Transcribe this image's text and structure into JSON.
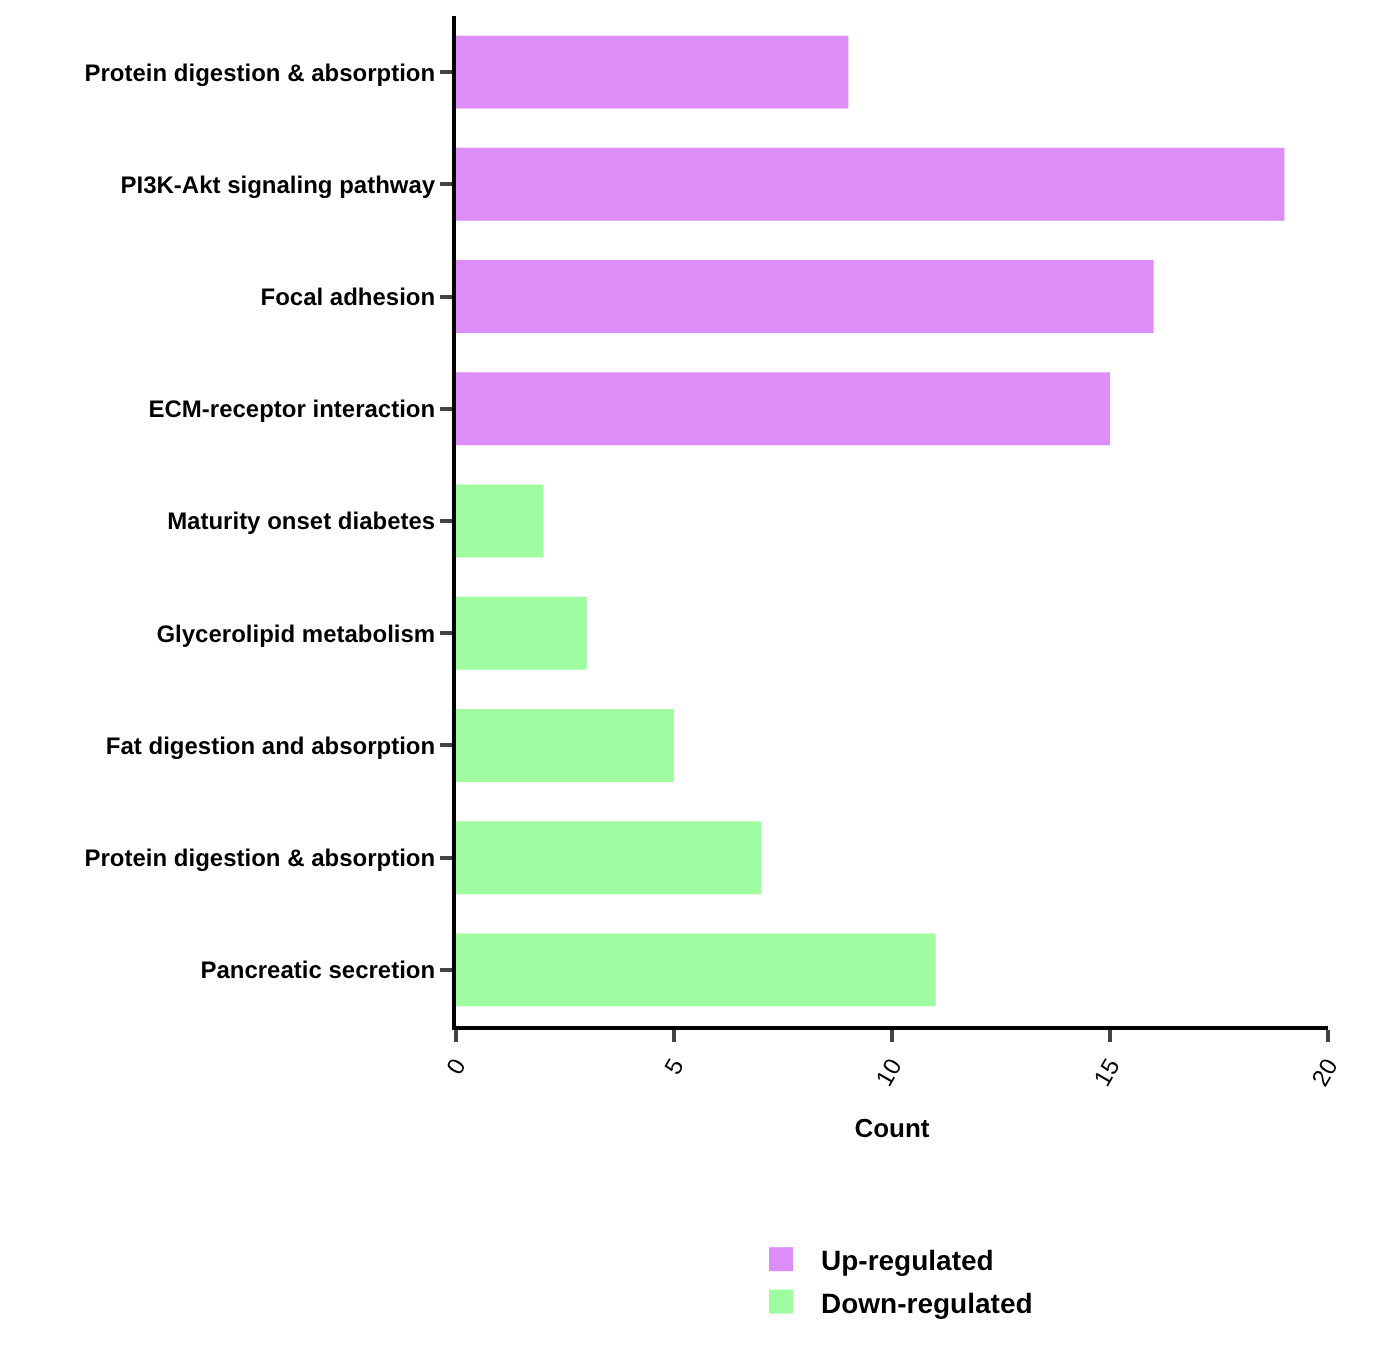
{
  "chart_data": {
    "type": "bar",
    "orientation": "horizontal",
    "xlabel": "Count",
    "categories": [
      "Protein digestion & absorption",
      "PI3K-Akt signaling pathway",
      "Focal adhesion",
      "ECM-receptor interaction",
      "Maturity onset diabetes",
      "Glycerolipid metabolism",
      "Fat digestion and absorption",
      "Protein digestion & absorption",
      "Pancreatic secretion"
    ],
    "series": [
      {
        "name": "Up-regulated",
        "color": "#dd8cf8",
        "values": [
          9,
          19,
          16,
          15,
          null,
          null,
          null,
          null,
          null
        ]
      },
      {
        "name": "Down-regulated",
        "color": "#a0fca0",
        "values": [
          null,
          null,
          null,
          null,
          2,
          3,
          5,
          7,
          11
        ]
      }
    ],
    "xlim": [
      0,
      20
    ],
    "xticks": [
      0,
      5,
      10,
      15,
      20
    ],
    "legend": "bottom"
  }
}
